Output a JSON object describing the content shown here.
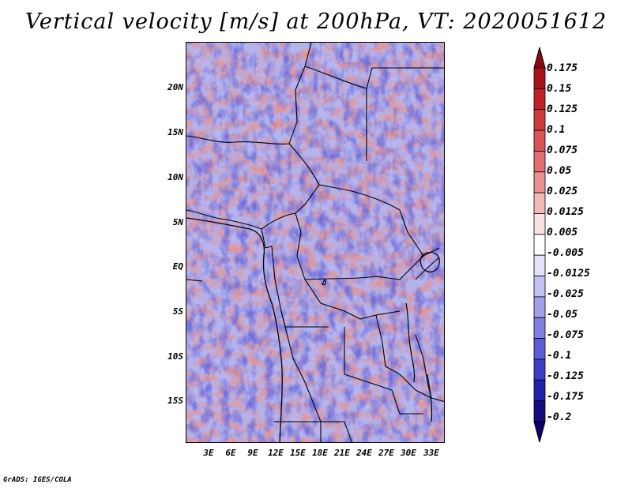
{
  "title": "Vertical velocity [m/s] at 200hPa, VT: 2020051612",
  "credit": "GrADS: IGES/COLA",
  "map": {
    "region": "Central Africa",
    "lat_labels": [
      "20N",
      "15N",
      "10N",
      "5N",
      "EQ",
      "5S",
      "10S",
      "15S"
    ],
    "lon_labels": [
      "3E",
      "6E",
      "9E",
      "12E",
      "15E",
      "18E",
      "21E",
      "24E",
      "27E",
      "30E",
      "33E"
    ]
  },
  "colorbar": {
    "labels": [
      "0.175",
      "0.15",
      "0.125",
      "0.1",
      "0.075",
      "0.05",
      "0.025",
      "0.0125",
      "0.005",
      "-0.005",
      "-0.0125",
      "-0.025",
      "-0.05",
      "-0.075",
      "-0.1",
      "-0.125",
      "-0.175",
      "-0.2"
    ],
    "colors": [
      "#8b0a12",
      "#a8141c",
      "#bf2228",
      "#cf3a3a",
      "#d95454",
      "#e06e6e",
      "#ea9090",
      "#f4b8b8",
      "#fbe2e2",
      "#ffffff",
      "#e2e2fa",
      "#c2c2f4",
      "#a0a0ec",
      "#8080e2",
      "#5c5cd6",
      "#3c3cc4",
      "#2222a8",
      "#140c80",
      "#0a0068"
    ]
  }
}
